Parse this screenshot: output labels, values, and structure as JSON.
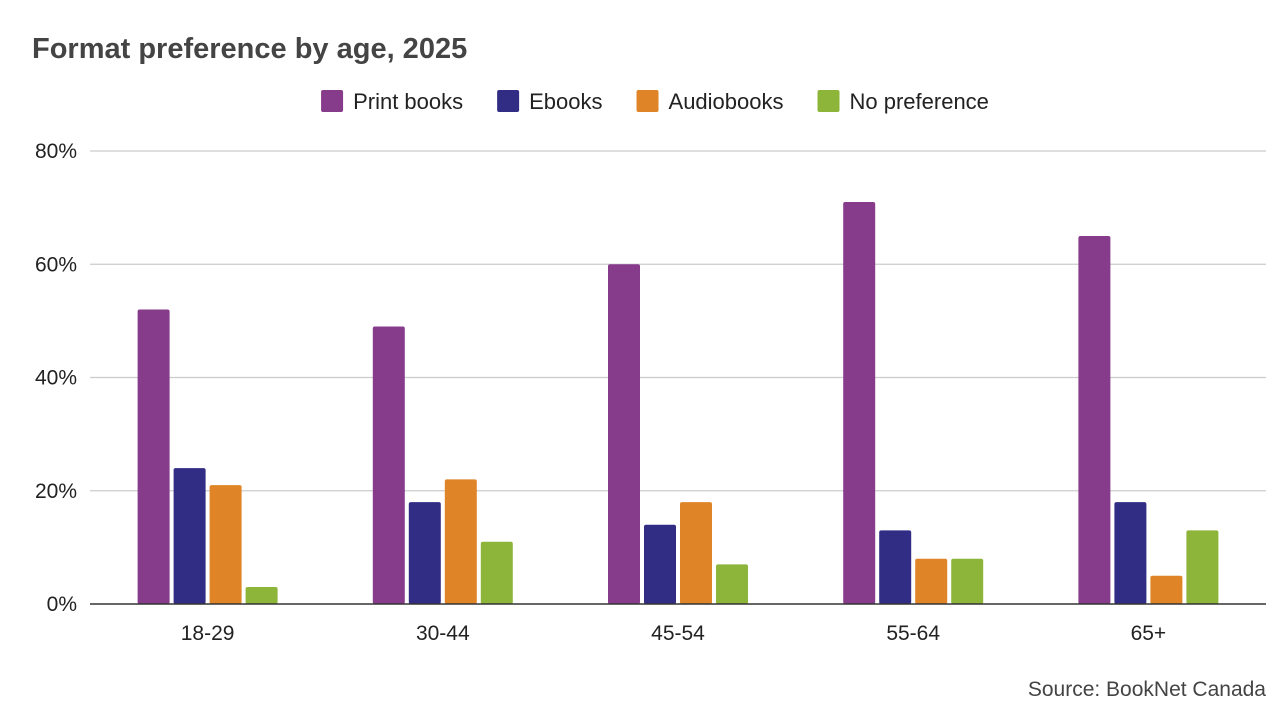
{
  "chart_data": {
    "type": "bar",
    "title": "Format preference by age, 2025",
    "source": "Source: BookNet Canada",
    "categories": [
      "18-29",
      "30-44",
      "45-54",
      "55-64",
      "65+"
    ],
    "series": [
      {
        "name": "Print books",
        "color": "#873b8b",
        "values": [
          52,
          49,
          60,
          71,
          65
        ]
      },
      {
        "name": "Ebooks",
        "color": "#322d84",
        "values": [
          24,
          18,
          14,
          13,
          18
        ]
      },
      {
        "name": "Audiobooks",
        "color": "#df8527",
        "values": [
          21,
          22,
          18,
          8,
          5
        ]
      },
      {
        "name": "No preference",
        "color": "#8db53a",
        "values": [
          3,
          11,
          7,
          8,
          13
        ]
      }
    ],
    "ylim": [
      0,
      80
    ],
    "yticks": [
      0,
      20,
      40,
      60,
      80
    ],
    "ytick_labels": [
      "0%",
      "20%",
      "40%",
      "60%",
      "80%"
    ],
    "legend_position": "top",
    "grid": true
  }
}
